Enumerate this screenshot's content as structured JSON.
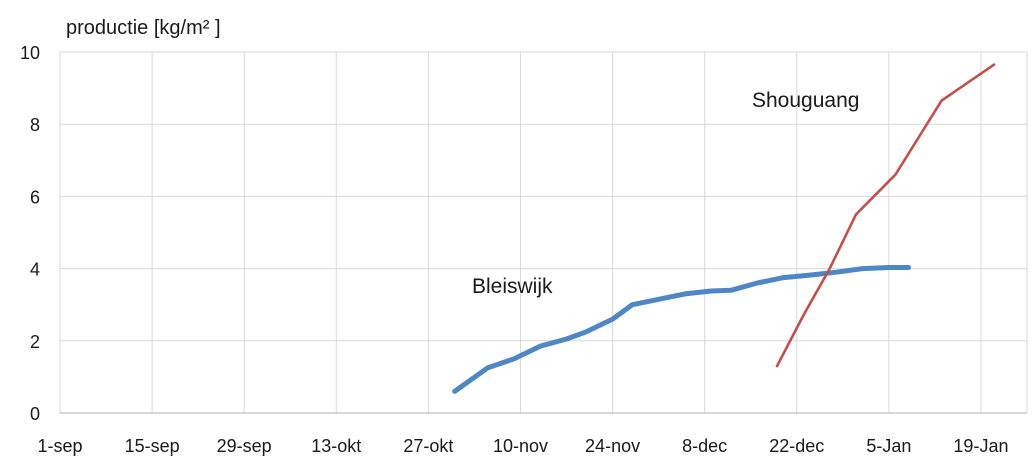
{
  "chart_data": {
    "type": "line",
    "title": "",
    "ylabel": "productie [kg/m² ]",
    "xlabel": "",
    "ylim": [
      0,
      10
    ],
    "yticks": [
      0,
      2,
      4,
      6,
      8,
      10
    ],
    "xlim": [
      "2023-09-01",
      "2024-01-26"
    ],
    "xticks": [
      {
        "date": "2023-09-01",
        "label": "1-sep"
      },
      {
        "date": "2023-09-15",
        "label": "15-sep"
      },
      {
        "date": "2023-09-29",
        "label": "29-sep"
      },
      {
        "date": "2023-10-13",
        "label": "13-okt"
      },
      {
        "date": "2023-10-27",
        "label": "27-okt"
      },
      {
        "date": "2023-11-10",
        "label": "10-nov"
      },
      {
        "date": "2023-11-24",
        "label": "24-nov"
      },
      {
        "date": "2023-12-08",
        "label": "8-dec"
      },
      {
        "date": "2023-12-22",
        "label": "22-dec"
      },
      {
        "date": "2024-01-05",
        "label": "5-Jan"
      },
      {
        "date": "2024-01-19",
        "label": "19-Jan"
      }
    ],
    "grid": true,
    "legend": "none",
    "series": [
      {
        "name": "Bleiswijk",
        "color": "#4f86c6",
        "points": [
          {
            "x": "2023-10-31",
            "y": 0.6
          },
          {
            "x": "2023-11-05",
            "y": 1.25
          },
          {
            "x": "2023-11-09",
            "y": 1.5
          },
          {
            "x": "2023-11-13",
            "y": 1.85
          },
          {
            "x": "2023-11-17",
            "y": 2.05
          },
          {
            "x": "2023-11-20",
            "y": 2.25
          },
          {
            "x": "2023-11-24",
            "y": 2.6
          },
          {
            "x": "2023-11-27",
            "y": 3.0
          },
          {
            "x": "2023-12-01",
            "y": 3.15
          },
          {
            "x": "2023-12-05",
            "y": 3.3
          },
          {
            "x": "2023-12-09",
            "y": 3.38
          },
          {
            "x": "2023-12-12",
            "y": 3.4
          },
          {
            "x": "2023-12-16",
            "y": 3.6
          },
          {
            "x": "2023-12-20",
            "y": 3.75
          },
          {
            "x": "2023-12-24",
            "y": 3.82
          },
          {
            "x": "2023-12-28",
            "y": 3.9
          },
          {
            "x": "2024-01-01",
            "y": 4.0
          },
          {
            "x": "2024-01-05",
            "y": 4.03
          },
          {
            "x": "2024-01-08",
            "y": 4.03
          }
        ]
      },
      {
        "name": "Shouguang",
        "color": "#c0504d",
        "points": [
          {
            "x": "2023-12-19",
            "y": 1.3
          },
          {
            "x": "2023-12-23",
            "y": 2.7
          },
          {
            "x": "2023-12-27",
            "y": 4.0
          },
          {
            "x": "2023-12-31",
            "y": 5.5
          },
          {
            "x": "2024-01-06",
            "y": 6.6
          },
          {
            "x": "2024-01-13",
            "y": 8.65
          },
          {
            "x": "2024-01-21",
            "y": 9.65
          }
        ]
      }
    ],
    "annotations": [
      {
        "text": "Bleiswijk",
        "series": "Bleiswijk"
      },
      {
        "text": "Shouguang",
        "series": "Shouguang"
      }
    ]
  }
}
